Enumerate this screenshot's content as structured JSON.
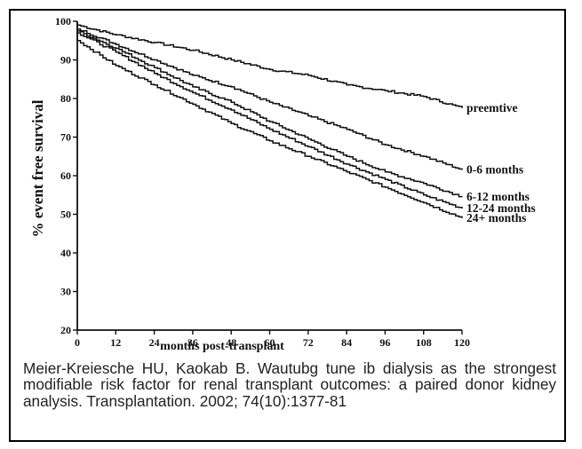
{
  "chart_data": {
    "type": "line",
    "step": true,
    "title": "",
    "xlabel": "months post-transplant",
    "ylabel": "% event free survival",
    "xlim": [
      0,
      120
    ],
    "ylim": [
      20,
      100
    ],
    "xticks": [
      0,
      12,
      24,
      36,
      48,
      60,
      72,
      84,
      96,
      108,
      120
    ],
    "yticks": [
      20,
      30,
      40,
      50,
      60,
      70,
      80,
      90,
      100
    ],
    "grid": false,
    "legend": "line-end labels",
    "colors": {
      "line": "#111111",
      "axis": "#111111"
    },
    "series": [
      {
        "name": "preemtive",
        "x": [
          0,
          12,
          24,
          36,
          48,
          60,
          72,
          84,
          96,
          108,
          120
        ],
        "y": [
          99,
          96.5,
          94.5,
          92.5,
          90,
          87.5,
          86,
          83.5,
          82,
          80.5,
          77.5
        ]
      },
      {
        "name": "0-6 months",
        "x": [
          0,
          12,
          24,
          36,
          48,
          60,
          72,
          84,
          96,
          108,
          120
        ],
        "y": [
          98,
          94,
          90,
          86,
          83,
          79,
          75.5,
          72,
          68,
          65,
          61.5
        ]
      },
      {
        "name": "6-12 months",
        "x": [
          0,
          12,
          24,
          36,
          48,
          60,
          72,
          84,
          96,
          108,
          120
        ],
        "y": [
          97.5,
          93,
          88,
          83,
          79,
          74,
          69.5,
          65,
          61,
          58,
          54.5
        ]
      },
      {
        "name": "12-24 months",
        "x": [
          0,
          12,
          24,
          36,
          48,
          60,
          72,
          84,
          96,
          108,
          120
        ],
        "y": [
          97,
          92,
          86.5,
          81.5,
          77,
          72,
          67.5,
          63,
          59,
          55,
          51.5
        ]
      },
      {
        "name": "24+ months",
        "x": [
          0,
          12,
          24,
          36,
          48,
          60,
          72,
          84,
          96,
          108,
          120
        ],
        "y": [
          95,
          88.5,
          83.5,
          78.5,
          73.5,
          69,
          65,
          61,
          57,
          53,
          49
        ]
      }
    ]
  },
  "caption": "Meier-Kreiesche HU, Kaokab B. Wautubg tune ib dialysis as the strongest modifiable risk factor for renal transplant outcomes: a paired donor kidney analysis. Transplantation. 2002; 74(10):1377-81"
}
